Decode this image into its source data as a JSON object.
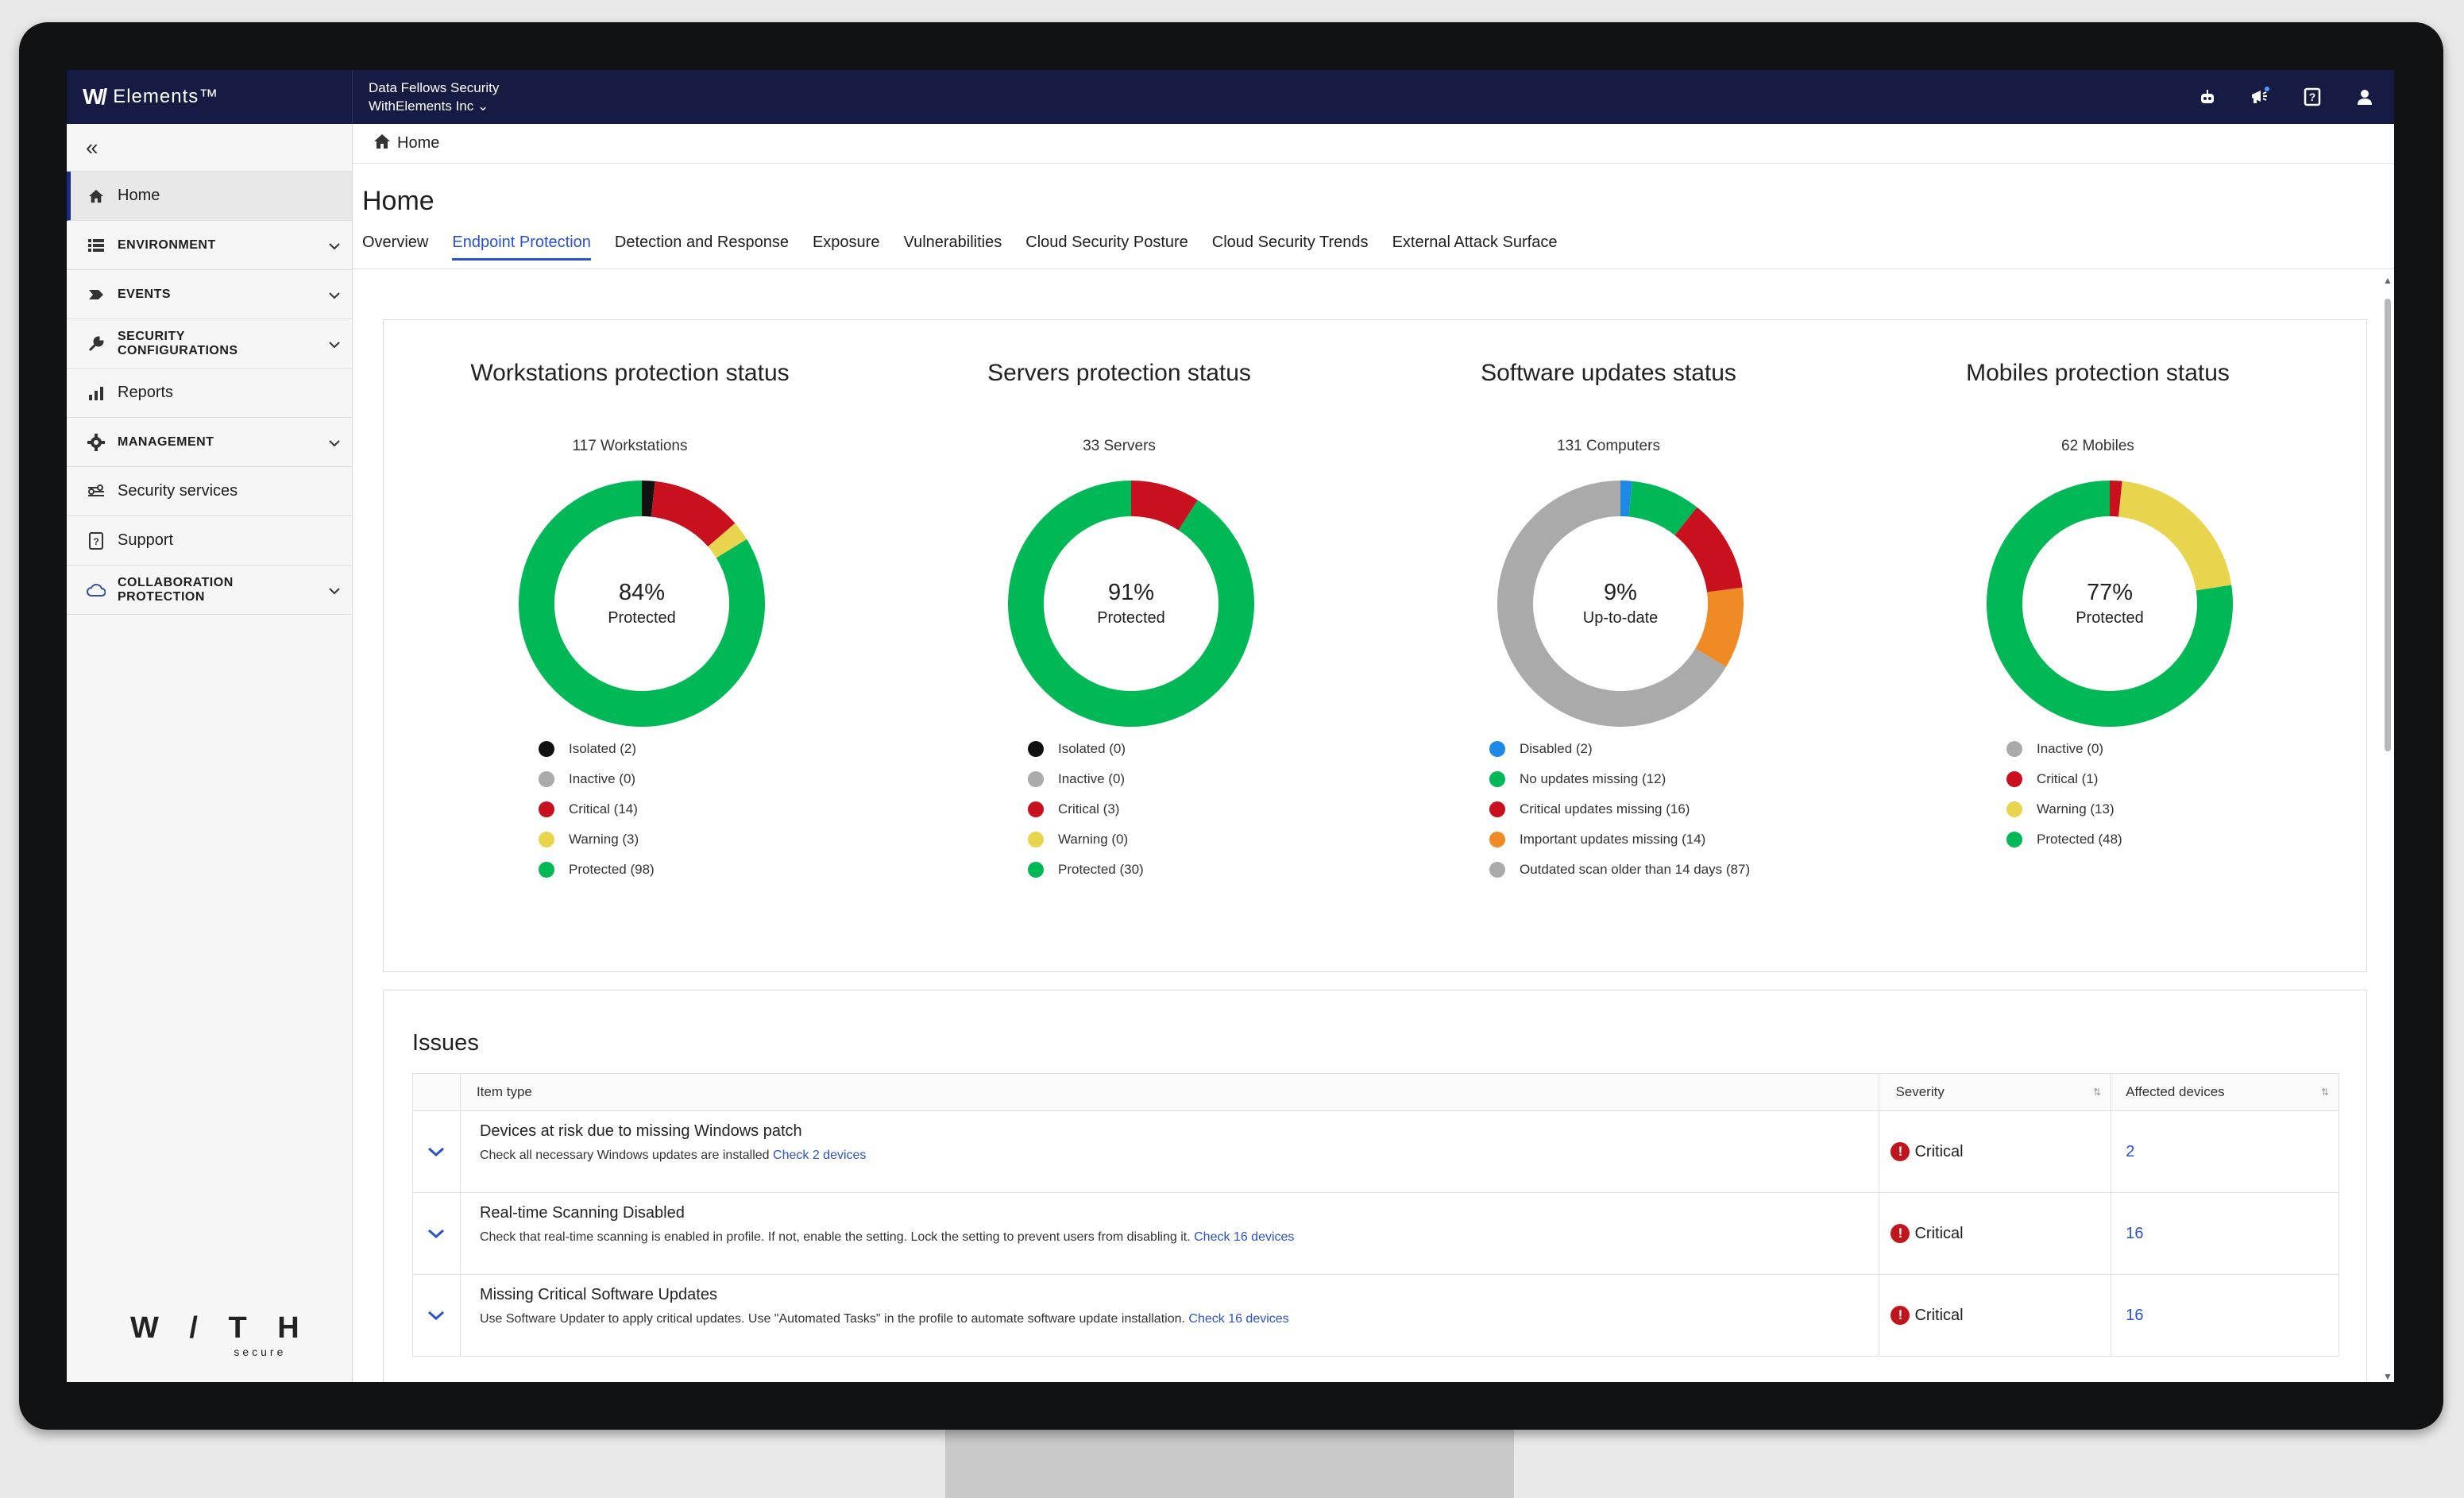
{
  "app": {
    "brand_logo": "W/",
    "brand_name": "Elements™",
    "org_name": "Data Fellows Security",
    "tenant": "WithElements Inc"
  },
  "top_icons": [
    "assistant-icon",
    "announcements-icon",
    "help-icon",
    "user-icon"
  ],
  "sidebar": {
    "collapse_label": "«",
    "items": [
      {
        "label": "Home",
        "icon": "home-icon",
        "caps": false,
        "chevron": false
      },
      {
        "label": "ENVIRONMENT",
        "icon": "list-icon",
        "caps": true,
        "chevron": true
      },
      {
        "label": "EVENTS",
        "icon": "events-icon",
        "caps": true,
        "chevron": true
      },
      {
        "label": "SECURITY CONFIGURATIONS",
        "icon": "wrench-icon",
        "caps": true,
        "chevron": true
      },
      {
        "label": "Reports",
        "icon": "chart-icon",
        "caps": false,
        "chevron": false
      },
      {
        "label": "MANAGEMENT",
        "icon": "gear-icon",
        "caps": true,
        "chevron": true
      },
      {
        "label": "Security services",
        "icon": "services-icon",
        "caps": false,
        "chevron": false
      },
      {
        "label": "Support",
        "icon": "support-icon",
        "caps": false,
        "chevron": false
      },
      {
        "label": "COLLABORATION PROTECTION",
        "icon": "cloud-icon",
        "caps": true,
        "chevron": true
      }
    ],
    "footer_logo_main": "W / T H",
    "footer_logo_sub": "secure"
  },
  "breadcrumb": {
    "label": "Home"
  },
  "page": {
    "title": "Home",
    "tabs": [
      "Overview",
      "Endpoint Protection",
      "Detection and Response",
      "Exposure",
      "Vulnerabilities",
      "Cloud Security Posture",
      "Cloud Security Trends",
      "External Attack Surface"
    ],
    "active_tab": "Endpoint Protection"
  },
  "chart_data": [
    {
      "type": "pie",
      "title": "Workstations protection status",
      "subtitle": "117 Workstations",
      "center_value": "84%",
      "center_label": "Protected",
      "categories": [
        "Isolated (2)",
        "Inactive (0)",
        "Critical (14)",
        "Warning (3)",
        "Protected (98)"
      ],
      "values": [
        2,
        0,
        14,
        3,
        98
      ],
      "colors": [
        "#111111",
        "#aaaaaa",
        "#c8101e",
        "#e8d44d",
        "#00b956"
      ]
    },
    {
      "type": "pie",
      "title": "Servers protection status",
      "subtitle": "33 Servers",
      "center_value": "91%",
      "center_label": "Protected",
      "categories": [
        "Isolated (0)",
        "Inactive (0)",
        "Critical (3)",
        "Warning (0)",
        "Protected (30)"
      ],
      "values": [
        0,
        0,
        3,
        0,
        30
      ],
      "colors": [
        "#111111",
        "#aaaaaa",
        "#c8101e",
        "#e8d44d",
        "#00b956"
      ]
    },
    {
      "type": "pie",
      "title": "Software updates status",
      "subtitle": "131 Computers",
      "center_value": "9%",
      "center_label": "Up-to-date",
      "categories": [
        "Disabled (2)",
        "No updates missing (12)",
        "Critical updates missing (16)",
        "Important updates missing (14)",
        "Outdated scan older than 14 days (87)"
      ],
      "values": [
        2,
        12,
        16,
        14,
        87
      ],
      "colors": [
        "#1e88e5",
        "#00b956",
        "#c8101e",
        "#f08a24",
        "#aaaaaa"
      ]
    },
    {
      "type": "pie",
      "title": "Mobiles protection status",
      "subtitle": "62 Mobiles",
      "center_value": "77%",
      "center_label": "Protected",
      "categories": [
        "Inactive (0)",
        "Critical (1)",
        "Warning (13)",
        "Protected (48)"
      ],
      "values": [
        0,
        1,
        13,
        48
      ],
      "colors": [
        "#aaaaaa",
        "#c8101e",
        "#e8d44d",
        "#00b956"
      ]
    }
  ],
  "issues": {
    "title": "Issues",
    "columns": {
      "item_type": "Item type",
      "severity": "Severity",
      "affected": "Affected devices"
    },
    "rows": [
      {
        "title": "Devices at risk due to missing Windows patch",
        "desc": "Check all necessary Windows updates are installed",
        "link": "Check 2 devices",
        "severity": "Critical",
        "affected": "2"
      },
      {
        "title": "Real-time Scanning Disabled",
        "desc": "Check that real-time scanning is enabled in profile. If not, enable the setting. Lock the setting to prevent users from disabling it.",
        "link": "Check 16 devices",
        "severity": "Critical",
        "affected": "16"
      },
      {
        "title": "Missing Critical Software Updates",
        "desc": "Use Software Updater to apply critical updates. Use \"Automated Tasks\" in the profile to automate software update installation.",
        "link": "Check 16 devices",
        "severity": "Critical",
        "affected": "16"
      }
    ]
  }
}
